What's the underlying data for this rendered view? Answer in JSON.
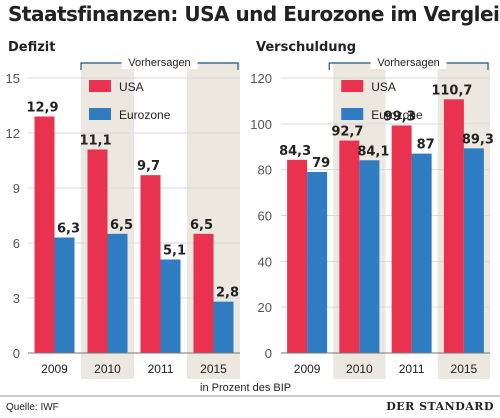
{
  "title": "Staatsfinanzen: USA und Eurozone im Vergleich",
  "unit_label": "in Prozent des BIP",
  "source": "Quelle: IWF",
  "brand": "DER STANDARD",
  "colors": {
    "usa": "#e8324f",
    "eurozone": "#2f7cc1",
    "forecast_bg": "#ece7df",
    "axis_text": "#555555"
  },
  "chart_data": [
    {
      "type": "bar",
      "title": "Defizit",
      "forecast_label": "Vorhersagen",
      "categories": [
        "2009",
        "2010",
        "2011",
        "2015"
      ],
      "ylim": [
        0,
        15
      ],
      "yticks": [
        0,
        3,
        6,
        9,
        12,
        15
      ],
      "series": [
        {
          "name": "USA",
          "values": [
            12.9,
            11.1,
            9.7,
            6.5
          ],
          "labels": [
            "12,9",
            "11,1",
            "9,7",
            "6,5"
          ]
        },
        {
          "name": "Eurozone",
          "values": [
            6.3,
            6.5,
            5.1,
            2.8
          ],
          "labels": [
            "6,3",
            "6,5",
            "5,1",
            "2,8"
          ]
        }
      ]
    },
    {
      "type": "bar",
      "title": "Verschuldung",
      "forecast_label": "Vorhersagen",
      "categories": [
        "2009",
        "2010",
        "2011",
        "2015"
      ],
      "ylim": [
        0,
        120
      ],
      "yticks": [
        0,
        20,
        40,
        60,
        80,
        100,
        120
      ],
      "series": [
        {
          "name": "USA",
          "values": [
            84.3,
            92.7,
            99.3,
            110.7
          ],
          "labels": [
            "84,3",
            "92,7",
            "99,3",
            "110,7"
          ]
        },
        {
          "name": "Eurozone",
          "values": [
            79,
            84.1,
            87,
            89.3
          ],
          "labels": [
            "79",
            "84,1",
            "87",
            "89,3"
          ]
        }
      ]
    }
  ]
}
